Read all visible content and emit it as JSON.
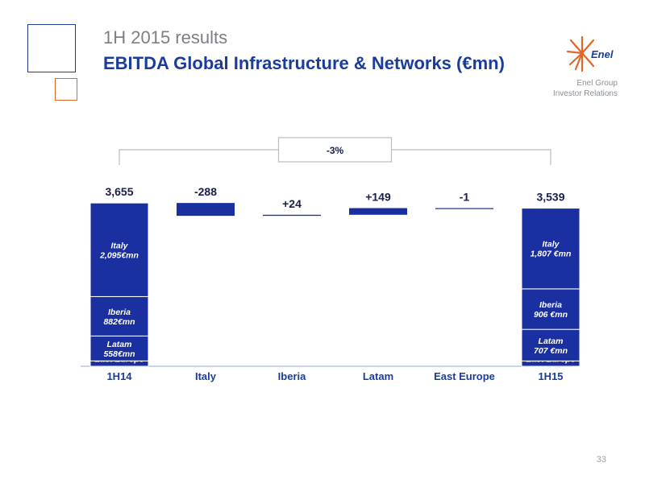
{
  "header": {
    "subtitle": "1H 2015 results",
    "title": "EBITDA Global Infrastructure & Networks (€mn)"
  },
  "logo": {
    "wordmark": "Enel"
  },
  "corner": {
    "line1": "Enel Group",
    "line2": "Investor Relations"
  },
  "page_number": "33",
  "colors": {
    "bar": "#1a2fa0",
    "accent_orange": "#e0662a",
    "text_blue": "#1a3c9c"
  },
  "chart_data": {
    "type": "bar",
    "subtype": "waterfall",
    "categories": [
      "1H14",
      "Italy",
      "Iberia",
      "Latam",
      "East Europe",
      "1H15"
    ],
    "totals": {
      "1H14": {
        "value": 3655,
        "value_label": "3,655",
        "segments": [
          {
            "name": "Italy",
            "value": 2095,
            "label": "2,095€mn"
          },
          {
            "name": "Iberia",
            "value": 882,
            "label": "882€mn"
          },
          {
            "name": "Latam",
            "value": 558,
            "label": "558€mn"
          },
          {
            "name": "East Europe",
            "value": 120,
            "label": "120 €mn"
          }
        ]
      },
      "1H15": {
        "value": 3539,
        "value_label": "3,539",
        "segments": [
          {
            "name": "Italy",
            "value": 1807,
            "label": "1,807 €mn"
          },
          {
            "name": "Iberia",
            "value": 906,
            "label": "906 €mn"
          },
          {
            "name": "Latam",
            "value": 707,
            "label": "707 €mn"
          },
          {
            "name": "East Europe",
            "value": 119,
            "label": "119 €mn"
          }
        ]
      }
    },
    "deltas": [
      {
        "category": "Italy",
        "value": -288,
        "label": "-288"
      },
      {
        "category": "Iberia",
        "value": 24,
        "label": "+24"
      },
      {
        "category": "Latam",
        "value": 149,
        "label": "+149"
      },
      {
        "category": "East Europe",
        "value": -1,
        "label": "-1"
      }
    ],
    "change_annotation": "-3%"
  }
}
